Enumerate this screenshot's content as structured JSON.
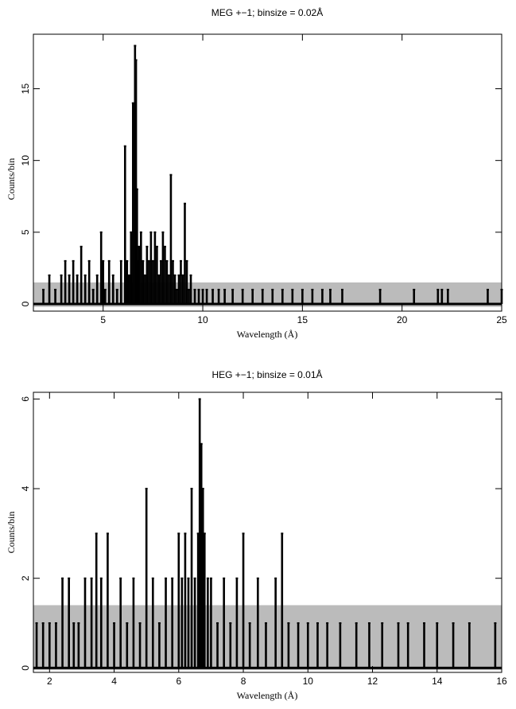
{
  "chart_data": [
    {
      "type": "line",
      "title": "MEG +−1; binsize = 0.02Å",
      "xlabel": "Wavelength (Å)",
      "ylabel": "Counts/bin",
      "xlim": [
        1.5,
        25
      ],
      "ylim": [
        -0.5,
        18.8
      ],
      "x_ticks": [
        5,
        10,
        15,
        20,
        25
      ],
      "y_ticks": [
        0,
        5,
        10,
        15
      ],
      "grid": false,
      "background_band": {
        "y_range": [
          -0.2,
          1.5
        ],
        "color": "#bbbbbb"
      },
      "series": [
        {
          "name": "",
          "style": "histogram",
          "color": "#000000",
          "x": [
            2.0,
            2.3,
            2.6,
            2.9,
            3.1,
            3.3,
            3.5,
            3.7,
            3.9,
            4.1,
            4.3,
            4.5,
            4.7,
            4.9,
            5.0,
            5.1,
            5.3,
            5.5,
            5.7,
            5.9,
            6.1,
            6.2,
            6.3,
            6.4,
            6.5,
            6.6,
            6.65,
            6.7,
            6.75,
            6.8,
            6.9,
            7.0,
            7.1,
            7.2,
            7.3,
            7.4,
            7.5,
            7.6,
            7.7,
            7.8,
            7.9,
            8.0,
            8.1,
            8.2,
            8.3,
            8.4,
            8.5,
            8.6,
            8.7,
            8.8,
            8.9,
            9.0,
            9.1,
            9.2,
            9.3,
            9.4,
            9.6,
            9.8,
            10.0,
            10.2,
            10.5,
            10.8,
            11.1,
            11.5,
            12.0,
            12.5,
            13.0,
            13.5,
            14.0,
            14.5,
            15.0,
            15.5,
            16.0,
            16.4,
            17.0,
            18.9,
            20.6,
            21.8,
            22.0,
            22.3,
            24.3,
            25.0
          ],
          "values": [
            1,
            2,
            1,
            2,
            3,
            2,
            3,
            2,
            4,
            2,
            3,
            1,
            2,
            5,
            3,
            1,
            3,
            2,
            1,
            3,
            11,
            3,
            2,
            5,
            14,
            18,
            17,
            8,
            3,
            4,
            5,
            3,
            2,
            4,
            3,
            5,
            3,
            5,
            4,
            2,
            3,
            5,
            4,
            3,
            2,
            9,
            3,
            2,
            1,
            2,
            3,
            2,
            7,
            3,
            1,
            2,
            1,
            1,
            1,
            1,
            1,
            1,
            1,
            1,
            1,
            1,
            1,
            1,
            1,
            1,
            1,
            1,
            1,
            1,
            1,
            1,
            1,
            1,
            1,
            1,
            1,
            1
          ]
        }
      ]
    },
    {
      "type": "line",
      "title": "HEG +−1; binsize = 0.01Å",
      "xlabel": "Wavelength (Å)",
      "ylabel": "Counts/bin",
      "xlim": [
        1.5,
        16
      ],
      "ylim": [
        -0.1,
        6.15
      ],
      "x_ticks": [
        2,
        4,
        6,
        8,
        10,
        12,
        14,
        16
      ],
      "y_ticks": [
        0,
        2,
        4,
        6
      ],
      "grid": false,
      "background_band": {
        "y_range": [
          -0.05,
          1.4
        ],
        "color": "#bbbbbb"
      },
      "series": [
        {
          "name": "",
          "style": "histogram",
          "color": "#000000",
          "x": [
            1.6,
            1.8,
            2.0,
            2.2,
            2.4,
            2.6,
            2.75,
            2.9,
            3.1,
            3.3,
            3.45,
            3.6,
            3.8,
            4.0,
            4.2,
            4.4,
            4.6,
            4.8,
            5.0,
            5.2,
            5.4,
            5.6,
            5.8,
            6.0,
            6.1,
            6.2,
            6.3,
            6.4,
            6.5,
            6.6,
            6.65,
            6.7,
            6.75,
            6.8,
            6.9,
            7.0,
            7.2,
            7.4,
            7.6,
            7.8,
            8.0,
            8.2,
            8.45,
            8.7,
            9.0,
            9.2,
            9.4,
            9.7,
            10.0,
            10.3,
            10.6,
            11.0,
            11.5,
            11.9,
            12.3,
            12.8,
            13.1,
            13.6,
            14.0,
            14.5,
            15.0,
            15.8
          ],
          "values": [
            1,
            1,
            1,
            1,
            2,
            2,
            1,
            1,
            2,
            2,
            3,
            2,
            3,
            1,
            2,
            1,
            2,
            1,
            4,
            2,
            1,
            2,
            2,
            3,
            2,
            3,
            2,
            4,
            2,
            3,
            6,
            5,
            4,
            3,
            2,
            2,
            1,
            2,
            1,
            2,
            3,
            1,
            2,
            1,
            2,
            3,
            1,
            1,
            1,
            1,
            1,
            1,
            1,
            1,
            1,
            1,
            1,
            1,
            1,
            1,
            1,
            1
          ]
        }
      ]
    }
  ]
}
